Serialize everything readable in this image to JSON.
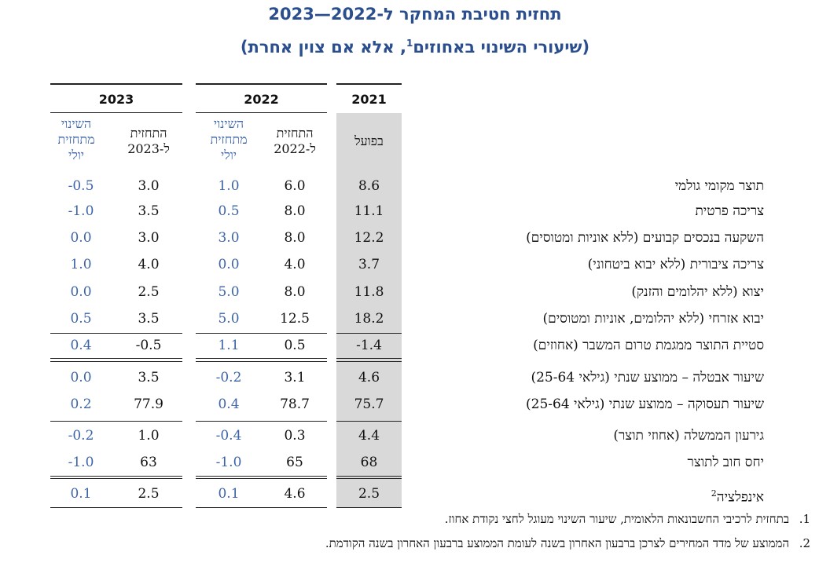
{
  "title": "תחזית חטיבת המחקר ל-2022—2023",
  "subtitle_pre": "(שיעורי השינוי באחוזים",
  "subtitle_sup": "1",
  "subtitle_post": ", אלא אם צוין אחרת)",
  "years": {
    "y2021": "2021",
    "y2022": "2022",
    "y2023": "2023"
  },
  "headers": {
    "actual": "בפועל",
    "forecast2022": [
      "התחזית",
      "ל-2022"
    ],
    "change2022": [
      "השינוי",
      "מתחזית",
      "יולי"
    ],
    "forecast2023": [
      "התחזית",
      "ל-2023"
    ],
    "change2023": [
      "השינוי",
      "מתחזית",
      "יולי"
    ]
  },
  "rows": [
    {
      "label": "תוצר מקומי גולמי",
      "v2021": "8.6",
      "f2022": "6.0",
      "c2022": "1.0",
      "f2023": "3.0",
      "c2023": "-0.5"
    },
    {
      "label": "צריכה פרטית",
      "v2021": "11.1",
      "f2022": "8.0",
      "c2022": "0.5",
      "f2023": "3.5",
      "c2023": "-1.0"
    },
    {
      "label": "השקעה בנכסים קבועים (ללא אוניות ומטוסים)",
      "v2021": "12.2",
      "f2022": "8.0",
      "c2022": "3.0",
      "f2023": "3.0",
      "c2023": "0.0"
    },
    {
      "label": "צריכה ציבורית (ללא יבוא ביטחוני)",
      "v2021": "3.7",
      "f2022": "4.0",
      "c2022": "0.0",
      "f2023": "4.0",
      "c2023": "1.0"
    },
    {
      "label": "יצוא (ללא יהלומים והזנק)",
      "v2021": "11.8",
      "f2022": "8.0",
      "c2022": "5.0",
      "f2023": "2.5",
      "c2023": "0.0"
    },
    {
      "label": "יבוא אזרחי (ללא יהלומים, אוניות ומטוסים)",
      "v2021": "18.2",
      "f2022": "12.5",
      "c2022": "5.0",
      "f2023": "3.5",
      "c2023": "0.5"
    },
    {
      "label": "סטיית התוצר ממגמת טרום המשבר (אחוזים)",
      "v2021": "-1.4",
      "f2022": "0.5",
      "c2022": "1.1",
      "f2023": "-0.5",
      "c2023": "0.4"
    },
    {
      "label": "שיעור אבטלה – ממוצע שנתי (גילאי 25-64)",
      "v2021": "4.6",
      "f2022": "3.1",
      "c2022": "-0.2",
      "f2023": "3.5",
      "c2023": "0.0"
    },
    {
      "label": "שיעור תעסוקה – ממוצע שנתי (גילאי 25-64)",
      "v2021": "75.7",
      "f2022": "78.7",
      "c2022": "0.4",
      "f2023": "77.9",
      "c2023": "0.2"
    },
    {
      "label": "גירעון הממשלה (אחוזי תוצר)",
      "v2021": "4.4",
      "f2022": "0.3",
      "c2022": "-0.4",
      "f2023": "1.0",
      "c2023": "-0.2"
    },
    {
      "label": "יחס חוב לתוצר",
      "v2021": "68",
      "f2022": "65",
      "c2022": "-1.0",
      "f2023": "63",
      "c2023": "-1.0"
    },
    {
      "label": "אינפלציה",
      "sup": "2",
      "v2021": "2.5",
      "f2022": "4.6",
      "c2022": "0.1",
      "f2023": "2.5",
      "c2023": "0.1"
    }
  ],
  "notes": [
    {
      "num": ".1",
      "text": "בתחזית לרכיבי החשבונאות הלאומית, שיעור השינוי מעוגל לחצי נקודת אחוז."
    },
    {
      "num": ".2",
      "text": "הממוצע של מדד המחירים לצרכן ברבעון האחרון בשנה לעומת הממוצע ברבעון האחרון בשנה הקודמת."
    }
  ]
}
